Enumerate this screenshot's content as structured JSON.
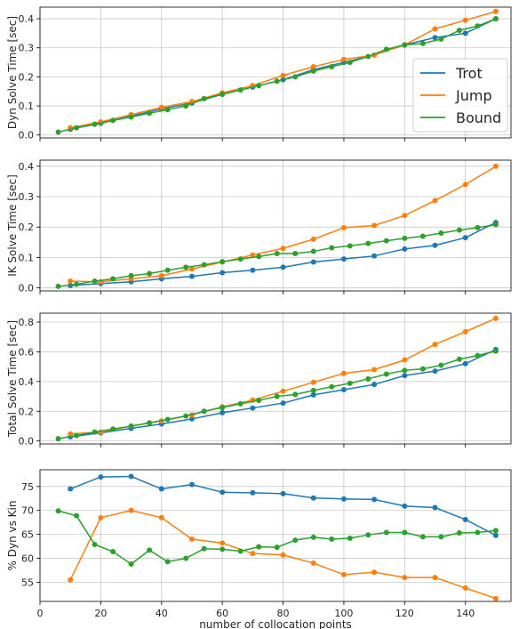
{
  "chart_data": [
    {
      "type": "line",
      "ylabel": "Dyn Solve Time [sec]",
      "xlabel": "",
      "xlim": [
        0,
        155
      ],
      "ylim": [
        -0.01,
        0.44
      ],
      "yticks": [
        "0.0",
        "0.1",
        "0.2",
        "0.3",
        "0.4"
      ],
      "ytick_values": [
        0,
        0.1,
        0.2,
        0.3,
        0.4
      ],
      "grid": true,
      "legend": {
        "placement": "right",
        "entries": [
          "Trot",
          "Jump",
          "Bound"
        ]
      },
      "series": [
        {
          "name": "Trot",
          "color": "#1f77b4",
          "x": [
            10,
            20,
            30,
            40,
            50,
            60,
            70,
            80,
            90,
            100,
            110,
            120,
            130,
            140,
            150
          ],
          "values": [
            0.02,
            0.04,
            0.065,
            0.09,
            0.11,
            0.14,
            0.165,
            0.19,
            0.225,
            0.25,
            0.275,
            0.31,
            0.335,
            0.35,
            0.4
          ]
        },
        {
          "name": "Jump",
          "color": "#ff7f0e",
          "x": [
            10,
            20,
            30,
            40,
            50,
            60,
            70,
            80,
            90,
            100,
            110,
            120,
            130,
            140,
            150
          ],
          "values": [
            0.025,
            0.045,
            0.07,
            0.095,
            0.115,
            0.145,
            0.17,
            0.205,
            0.235,
            0.26,
            0.275,
            0.31,
            0.365,
            0.395,
            0.425
          ]
        },
        {
          "name": "Bound",
          "color": "#2ca02c",
          "x": [
            6,
            12,
            18,
            24,
            30,
            36,
            42,
            48,
            54,
            60,
            66,
            72,
            78,
            84,
            90,
            96,
            102,
            108,
            114,
            120,
            126,
            132,
            138,
            144,
            150
          ],
          "values": [
            0.01,
            0.025,
            0.037,
            0.05,
            0.062,
            0.075,
            0.087,
            0.1,
            0.125,
            0.14,
            0.155,
            0.17,
            0.185,
            0.2,
            0.22,
            0.235,
            0.25,
            0.27,
            0.295,
            0.31,
            0.315,
            0.33,
            0.36,
            0.375,
            0.4
          ]
        }
      ]
    },
    {
      "type": "line",
      "ylabel": "IK Solve Time [sec]",
      "xlabel": "",
      "xlim": [
        0,
        155
      ],
      "ylim": [
        -0.01,
        0.42
      ],
      "yticks": [
        "0.0",
        "0.1",
        "0.2",
        "0.3",
        "0.4"
      ],
      "ytick_values": [
        0,
        0.1,
        0.2,
        0.3,
        0.4
      ],
      "grid": true,
      "series": [
        {
          "name": "Trot",
          "color": "#1f77b4",
          "x": [
            10,
            20,
            30,
            40,
            50,
            60,
            70,
            80,
            90,
            100,
            110,
            120,
            130,
            140,
            150
          ],
          "values": [
            0.008,
            0.014,
            0.02,
            0.03,
            0.038,
            0.05,
            0.058,
            0.068,
            0.085,
            0.095,
            0.105,
            0.128,
            0.14,
            0.165,
            0.215
          ]
        },
        {
          "name": "Jump",
          "color": "#ff7f0e",
          "x": [
            10,
            20,
            30,
            40,
            50,
            60,
            70,
            80,
            90,
            100,
            110,
            120,
            130,
            140,
            150
          ],
          "values": [
            0.022,
            0.02,
            0.03,
            0.04,
            0.062,
            0.085,
            0.108,
            0.13,
            0.16,
            0.198,
            0.205,
            0.238,
            0.287,
            0.34,
            0.4
          ]
        },
        {
          "name": "Bound",
          "color": "#2ca02c",
          "x": [
            6,
            12,
            18,
            24,
            30,
            36,
            42,
            48,
            54,
            60,
            66,
            72,
            78,
            84,
            90,
            96,
            102,
            108,
            114,
            120,
            126,
            132,
            138,
            144,
            150
          ],
          "values": [
            0.005,
            0.012,
            0.022,
            0.03,
            0.04,
            0.047,
            0.058,
            0.068,
            0.076,
            0.086,
            0.095,
            0.103,
            0.113,
            0.113,
            0.12,
            0.132,
            0.138,
            0.146,
            0.155,
            0.163,
            0.17,
            0.18,
            0.19,
            0.198,
            0.208
          ]
        }
      ]
    },
    {
      "type": "line",
      "ylabel": "Total Solve Time [sec]",
      "xlabel": "",
      "xlim": [
        0,
        155
      ],
      "ylim": [
        -0.02,
        0.86
      ],
      "yticks": [
        "0.0",
        "0.2",
        "0.4",
        "0.6",
        "0.8"
      ],
      "ytick_values": [
        0,
        0.2,
        0.4,
        0.6,
        0.8
      ],
      "grid": true,
      "series": [
        {
          "name": "Trot",
          "color": "#1f77b4",
          "x": [
            10,
            20,
            30,
            40,
            50,
            60,
            70,
            80,
            90,
            100,
            110,
            120,
            130,
            140,
            150
          ],
          "values": [
            0.028,
            0.055,
            0.085,
            0.115,
            0.148,
            0.19,
            0.222,
            0.255,
            0.31,
            0.345,
            0.38,
            0.44,
            0.47,
            0.52,
            0.615
          ]
        },
        {
          "name": "Jump",
          "color": "#ff7f0e",
          "x": [
            10,
            20,
            30,
            40,
            50,
            60,
            70,
            80,
            90,
            100,
            110,
            120,
            130,
            140,
            150
          ],
          "values": [
            0.047,
            0.06,
            0.1,
            0.135,
            0.175,
            0.23,
            0.275,
            0.335,
            0.395,
            0.455,
            0.48,
            0.545,
            0.65,
            0.735,
            0.825
          ]
        },
        {
          "name": "Bound",
          "color": "#2ca02c",
          "x": [
            6,
            12,
            18,
            24,
            30,
            36,
            42,
            48,
            54,
            60,
            66,
            72,
            78,
            84,
            90,
            96,
            102,
            108,
            114,
            120,
            126,
            132,
            138,
            144,
            150
          ],
          "values": [
            0.015,
            0.037,
            0.06,
            0.08,
            0.1,
            0.122,
            0.145,
            0.168,
            0.2,
            0.225,
            0.25,
            0.273,
            0.3,
            0.313,
            0.34,
            0.365,
            0.388,
            0.418,
            0.45,
            0.475,
            0.485,
            0.51,
            0.55,
            0.575,
            0.605
          ]
        }
      ]
    },
    {
      "type": "line",
      "ylabel": "% Dyn vs Kin",
      "xlabel": "number of collocation points",
      "xlim": [
        0,
        155
      ],
      "ylim": [
        51,
        78.5
      ],
      "yticks": [
        "55",
        "60",
        "65",
        "70",
        "75"
      ],
      "ytick_values": [
        55,
        60,
        65,
        70,
        75
      ],
      "xticks": [
        "0",
        "20",
        "40",
        "60",
        "80",
        "100",
        "120",
        "140"
      ],
      "xtick_values": [
        0,
        20,
        40,
        60,
        80,
        100,
        120,
        140
      ],
      "grid": true,
      "series": [
        {
          "name": "Trot",
          "color": "#1f77b4",
          "x": [
            10,
            20,
            30,
            40,
            50,
            60,
            70,
            80,
            90,
            100,
            110,
            120,
            130,
            140,
            150
          ],
          "values": [
            74.5,
            77,
            77.1,
            74.5,
            75.4,
            73.8,
            73.7,
            73.5,
            72.6,
            72.4,
            72.3,
            70.9,
            70.6,
            68.1,
            64.8
          ]
        },
        {
          "name": "Jump",
          "color": "#ff7f0e",
          "x": [
            10,
            20,
            30,
            40,
            50,
            60,
            70,
            80,
            90,
            100,
            110,
            120,
            130,
            140,
            150
          ],
          "values": [
            55.5,
            68.5,
            70,
            68.5,
            64,
            63.2,
            61,
            60.7,
            59,
            56.6,
            57.1,
            56,
            56,
            53.8,
            51.6
          ]
        },
        {
          "name": "Bound",
          "color": "#2ca02c",
          "x": [
            6,
            12,
            18,
            24,
            30,
            36,
            42,
            48,
            54,
            60,
            66,
            72,
            78,
            84,
            90,
            96,
            102,
            108,
            114,
            120,
            126,
            132,
            138,
            144,
            150
          ],
          "values": [
            69.9,
            68.9,
            62.9,
            61.4,
            58.8,
            61.7,
            59.3,
            60,
            62,
            61.9,
            61.5,
            62.4,
            62.3,
            63.8,
            64.4,
            64,
            64.2,
            64.9,
            65.4,
            65.4,
            64.5,
            64.5,
            65.3,
            65.4,
            65.8
          ]
        }
      ]
    }
  ]
}
